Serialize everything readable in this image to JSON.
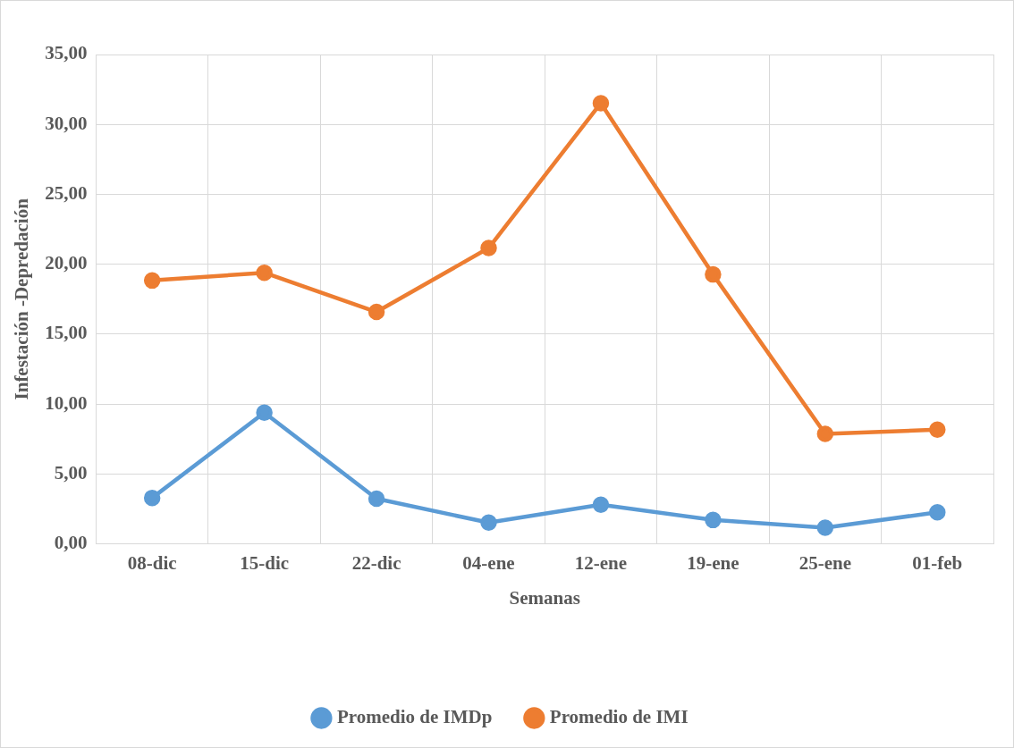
{
  "chart_data": {
    "type": "line",
    "xlabel": "Semanas",
    "ylabel": "Infestación -Depredación",
    "categories": [
      "08-dic",
      "15-dic",
      "22-dic",
      "04-ene",
      "12-ene",
      "19-ene",
      "25-ene",
      "01-feb"
    ],
    "series": [
      {
        "name": "Promedio de IMDp",
        "color": "#5b9bd5",
        "values": [
          3.29,
          9.39,
          3.23,
          1.52,
          2.8,
          1.71,
          1.16,
          2.26
        ]
      },
      {
        "name": "Promedio de IMI",
        "color": "#ed7d31",
        "values": [
          18.84,
          19.39,
          16.59,
          21.16,
          31.52,
          19.27,
          7.87,
          8.17
        ]
      }
    ],
    "ylim": [
      0,
      35
    ],
    "yticks": [
      {
        "value": 0,
        "label": "0,00"
      },
      {
        "value": 5,
        "label": "5,00"
      },
      {
        "value": 10,
        "label": "10,00"
      },
      {
        "value": 15,
        "label": "15,00"
      },
      {
        "value": 20,
        "label": "20,00"
      },
      {
        "value": 25,
        "label": "25,00"
      },
      {
        "value": 30,
        "label": "30,00"
      },
      {
        "value": 35,
        "label": "35,00"
      }
    ],
    "grid": true,
    "legend": "bottom",
    "marker": "circle",
    "line_style": "solid"
  }
}
